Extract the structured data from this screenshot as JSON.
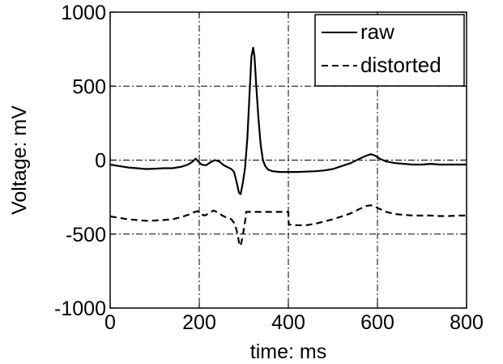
{
  "chart_data": {
    "type": "line",
    "title": "",
    "xlabel": "time: ms",
    "ylabel": "Voltage: mV",
    "xlim": [
      0,
      800
    ],
    "ylim": [
      -1000,
      1000
    ],
    "xticks": [
      0,
      200,
      400,
      600,
      800
    ],
    "yticks": [
      -1000,
      -500,
      0,
      500,
      1000
    ],
    "xtick_labels": [
      "0",
      "200",
      "400",
      "600",
      "800"
    ],
    "ytick_labels": [
      "-1000",
      "-500",
      "0",
      "500",
      "1000"
    ],
    "grid": true,
    "legend_position": "top-right",
    "series": [
      {
        "name": "raw",
        "style": "solid",
        "color": "#000000",
        "points": [
          [
            0,
            -30
          ],
          [
            20,
            -40
          ],
          [
            40,
            -50
          ],
          [
            60,
            -55
          ],
          [
            80,
            -60
          ],
          [
            100,
            -58
          ],
          [
            120,
            -55
          ],
          [
            140,
            -55
          ],
          [
            160,
            -45
          ],
          [
            175,
            -30
          ],
          [
            185,
            -10
          ],
          [
            192,
            10
          ],
          [
            198,
            -10
          ],
          [
            205,
            -30
          ],
          [
            215,
            -35
          ],
          [
            225,
            -15
          ],
          [
            235,
            0
          ],
          [
            245,
            -10
          ],
          [
            255,
            -35
          ],
          [
            265,
            -50
          ],
          [
            272,
            -60
          ],
          [
            278,
            -80
          ],
          [
            284,
            -150
          ],
          [
            289,
            -220
          ],
          [
            293,
            -230
          ],
          [
            298,
            -150
          ],
          [
            303,
            -50
          ],
          [
            308,
            150
          ],
          [
            313,
            450
          ],
          [
            317,
            700
          ],
          [
            321,
            760
          ],
          [
            324,
            700
          ],
          [
            328,
            500
          ],
          [
            333,
            280
          ],
          [
            338,
            100
          ],
          [
            343,
            0
          ],
          [
            348,
            -40
          ],
          [
            355,
            -65
          ],
          [
            365,
            -75
          ],
          [
            380,
            -80
          ],
          [
            400,
            -80
          ],
          [
            420,
            -80
          ],
          [
            440,
            -78
          ],
          [
            460,
            -75
          ],
          [
            480,
            -70
          ],
          [
            500,
            -60
          ],
          [
            520,
            -40
          ],
          [
            540,
            -20
          ],
          [
            560,
            10
          ],
          [
            575,
            30
          ],
          [
            585,
            40
          ],
          [
            595,
            30
          ],
          [
            605,
            10
          ],
          [
            620,
            -10
          ],
          [
            640,
            -20
          ],
          [
            660,
            -25
          ],
          [
            680,
            -30
          ],
          [
            700,
            -30
          ],
          [
            720,
            -25
          ],
          [
            740,
            -30
          ],
          [
            760,
            -30
          ],
          [
            780,
            -30
          ],
          [
            800,
            -30
          ]
        ]
      },
      {
        "name": "distorted",
        "style": "dashed",
        "color": "#000000",
        "points": [
          [
            0,
            -380
          ],
          [
            20,
            -390
          ],
          [
            40,
            -400
          ],
          [
            60,
            -405
          ],
          [
            80,
            -410
          ],
          [
            100,
            -408
          ],
          [
            120,
            -405
          ],
          [
            140,
            -400
          ],
          [
            160,
            -385
          ],
          [
            175,
            -370
          ],
          [
            190,
            -350
          ],
          [
            197,
            -345
          ],
          [
            203,
            -365
          ],
          [
            212,
            -375
          ],
          [
            222,
            -360
          ],
          [
            232,
            -340
          ],
          [
            242,
            -355
          ],
          [
            252,
            -375
          ],
          [
            262,
            -390
          ],
          [
            272,
            -400
          ],
          [
            280,
            -430
          ],
          [
            286,
            -500
          ],
          [
            290,
            -570
          ],
          [
            293,
            -580
          ],
          [
            297,
            -520
          ],
          [
            302,
            -430
          ],
          [
            305,
            -370
          ],
          [
            305,
            -350
          ],
          [
            320,
            -350
          ],
          [
            350,
            -350
          ],
          [
            380,
            -350
          ],
          [
            400,
            -350
          ],
          [
            401,
            -435
          ],
          [
            420,
            -440
          ],
          [
            440,
            -440
          ],
          [
            460,
            -430
          ],
          [
            480,
            -415
          ],
          [
            500,
            -400
          ],
          [
            520,
            -380
          ],
          [
            540,
            -360
          ],
          [
            560,
            -330
          ],
          [
            575,
            -310
          ],
          [
            585,
            -305
          ],
          [
            595,
            -315
          ],
          [
            605,
            -330
          ],
          [
            620,
            -350
          ],
          [
            640,
            -365
          ],
          [
            660,
            -370
          ],
          [
            680,
            -375
          ],
          [
            700,
            -375
          ],
          [
            720,
            -375
          ],
          [
            740,
            -378
          ],
          [
            760,
            -378
          ],
          [
            780,
            -375
          ],
          [
            800,
            -375
          ]
        ]
      }
    ]
  }
}
